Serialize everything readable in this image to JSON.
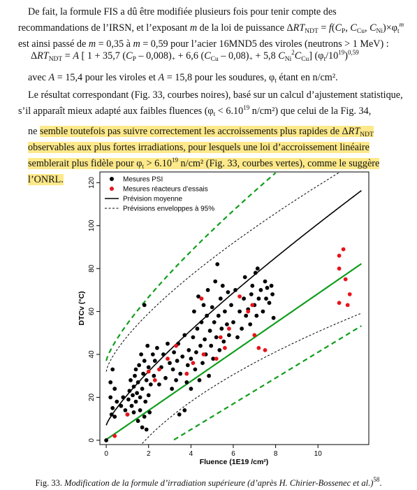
{
  "text": {
    "p1": "De fait, la formule FIS a dû être modifiée plusieurs fois pour tenir compte des recommandations de l’IRSN, et l’exposant m de la loi de puissance ΔRTNDT = f(CP, CCu, CNi)×φtm est ainsi passé de m = 0,35 à m = 0,59 pour l’acier 16MND5 des viroles (neutrons > 1 MeV) :",
    "eq": "ΔRTNDT = A [ 1 + 35,7 (CP – 0,008)+ + 6,6 (CCu – 0,08)+ + 5,8 CNi2CCu] (φt/1019)0,59",
    "p2": "avec A = 15,4 pour les viroles et A = 15,8 pour les soudures, φt étant en n/cm².",
    "p3": "Le résultat correspondant (Fig. 33, courbes noires), basé sur un calcul d’ajustement statistique, s’il apparaît mieux adapté aux faibles fluences (φt < 6.1019 n/cm²) que celui de la Fig. 34,",
    "p4_lead": "ne ",
    "p4_hl": "semble toutefois pas suivre correctement les accroissements plus rapides de ΔRTNDT observables aux plus fortes irradiations, pour lesquels une loi d’accroissement linéaire semblerait plus fidèle pour φt > 6.1019 n/cm² (Fig. 33, courbes vertes), comme le suggère l’ONRL.",
    "caption_label": "Fig. 33.",
    "caption_text": "Modification de la formule d’irradiation supérieure (d’après H. Chirier-Bossenec et al.)",
    "caption_ref": "58",
    "caption_end": "."
  },
  "chart_data": {
    "type": "scatter",
    "xlabel": "Fluence (1E19 /cm²)",
    "ylabel": "DTCv (°C)",
    "xlim": [
      -0.3,
      12.4
    ],
    "ylim": [
      -2,
      125
    ],
    "xticks": [
      0,
      2,
      4,
      6,
      8,
      10
    ],
    "yticks": [
      0,
      20,
      40,
      60,
      80,
      100,
      120
    ],
    "legend": {
      "position": "top-left",
      "entries": [
        "Mesures PSI",
        "Mesures réacteurs d’essais",
        "Prévision moyenne",
        "Prévisions enveloppes à 95%"
      ]
    },
    "series": [
      {
        "name": "Mesures PSI",
        "color": "#000000",
        "points": [
          [
            0.0,
            0
          ],
          [
            0.2,
            27
          ],
          [
            0.2,
            20
          ],
          [
            0.25,
            12
          ],
          [
            0.3,
            15
          ],
          [
            0.3,
            33
          ],
          [
            0.4,
            11
          ],
          [
            0.4,
            24
          ],
          [
            0.5,
            18
          ],
          [
            0.7,
            16
          ],
          [
            0.8,
            20
          ],
          [
            0.9,
            14
          ],
          [
            1.0,
            12
          ],
          [
            1.05,
            19
          ],
          [
            1.1,
            23
          ],
          [
            1.15,
            28
          ],
          [
            1.2,
            16
          ],
          [
            1.25,
            21
          ],
          [
            1.3,
            13
          ],
          [
            1.3,
            25
          ],
          [
            1.35,
            30
          ],
          [
            1.4,
            18
          ],
          [
            1.4,
            33
          ],
          [
            1.45,
            22
          ],
          [
            1.5,
            9
          ],
          [
            1.5,
            27
          ],
          [
            1.55,
            35
          ],
          [
            1.6,
            14
          ],
          [
            1.6,
            20
          ],
          [
            1.65,
            40
          ],
          [
            1.7,
            6
          ],
          [
            1.7,
            24
          ],
          [
            1.75,
            31
          ],
          [
            1.8,
            11
          ],
          [
            1.8,
            37
          ],
          [
            1.8,
            63
          ],
          [
            1.85,
            18
          ],
          [
            1.9,
            5
          ],
          [
            1.9,
            28
          ],
          [
            1.95,
            44
          ],
          [
            2.0,
            21
          ],
          [
            2.0,
            34
          ],
          [
            2.05,
            13
          ],
          [
            2.1,
            26
          ],
          [
            2.2,
            40
          ],
          [
            2.25,
            30
          ],
          [
            2.3,
            37
          ],
          [
            2.4,
            43
          ],
          [
            2.5,
            26
          ],
          [
            2.6,
            34
          ],
          [
            2.7,
            40
          ],
          [
            2.8,
            29
          ],
          [
            2.9,
            45
          ],
          [
            3.0,
            36
          ],
          [
            3.1,
            24
          ],
          [
            3.15,
            33
          ],
          [
            3.2,
            41
          ],
          [
            3.3,
            28
          ],
          [
            3.35,
            37
          ],
          [
            3.4,
            45
          ],
          [
            3.45,
            12
          ],
          [
            3.5,
            31
          ],
          [
            3.6,
            39
          ],
          [
            3.7,
            14
          ],
          [
            3.7,
            49
          ],
          [
            3.8,
            27
          ],
          [
            3.85,
            35
          ],
          [
            3.9,
            42
          ],
          [
            4.0,
            24
          ],
          [
            4.0,
            38
          ],
          [
            4.1,
            48
          ],
          [
            4.15,
            60
          ],
          [
            4.2,
            33
          ],
          [
            4.25,
            41
          ],
          [
            4.3,
            52
          ],
          [
            4.35,
            67
          ],
          [
            4.4,
            28
          ],
          [
            4.45,
            44
          ],
          [
            4.5,
            55
          ],
          [
            4.55,
            36
          ],
          [
            4.6,
            63
          ],
          [
            4.65,
            47
          ],
          [
            4.7,
            40
          ],
          [
            4.75,
            58
          ],
          [
            4.8,
            70
          ],
          [
            4.85,
            30
          ],
          [
            4.9,
            51
          ],
          [
            4.95,
            44
          ],
          [
            5.0,
            62
          ],
          [
            5.05,
            38
          ],
          [
            5.1,
            55
          ],
          [
            5.15,
            74
          ],
          [
            5.2,
            48
          ],
          [
            5.25,
            82
          ],
          [
            5.3,
            58
          ],
          [
            5.35,
            42
          ],
          [
            5.4,
            66
          ],
          [
            5.45,
            52
          ],
          [
            5.5,
            72
          ],
          [
            5.55,
            46
          ],
          [
            5.6,
            60
          ],
          [
            5.7,
            54
          ],
          [
            5.75,
            69
          ],
          [
            5.8,
            49
          ],
          [
            5.9,
            63
          ],
          [
            6.0,
            55
          ],
          [
            6.1,
            70
          ],
          [
            6.2,
            48
          ],
          [
            6.3,
            60
          ],
          [
            6.4,
            52
          ],
          [
            6.5,
            66
          ],
          [
            6.55,
            76
          ],
          [
            6.6,
            58
          ],
          [
            6.7,
            61
          ],
          [
            6.8,
            54
          ],
          [
            6.85,
            68
          ],
          [
            6.9,
            72
          ],
          [
            7.0,
            63
          ],
          [
            7.05,
            78
          ],
          [
            7.1,
            58
          ],
          [
            7.15,
            80
          ],
          [
            7.2,
            66
          ],
          [
            7.3,
            70
          ],
          [
            7.4,
            60
          ],
          [
            7.5,
            74
          ],
          [
            7.55,
            66
          ],
          [
            7.6,
            71
          ],
          [
            7.7,
            64
          ],
          [
            7.8,
            72
          ],
          [
            7.85,
            68
          ],
          [
            7.9,
            57
          ]
        ]
      },
      {
        "name": "Mesures réacteurs d’essais",
        "color": "#e8141b",
        "points": [
          [
            0.4,
            2
          ],
          [
            1.0,
            12
          ],
          [
            2.0,
            32
          ],
          [
            2.3,
            28
          ],
          [
            2.5,
            33
          ],
          [
            2.9,
            38
          ],
          [
            3.3,
            44
          ],
          [
            3.8,
            31
          ],
          [
            4.1,
            36
          ],
          [
            4.5,
            66
          ],
          [
            4.6,
            40
          ],
          [
            5.2,
            38
          ],
          [
            5.4,
            48
          ],
          [
            5.6,
            43
          ],
          [
            5.8,
            52
          ],
          [
            6.3,
            67
          ],
          [
            6.7,
            60
          ],
          [
            6.9,
            63
          ],
          [
            7.0,
            49
          ],
          [
            7.2,
            43
          ],
          [
            7.5,
            42
          ],
          [
            11.0,
            86
          ],
          [
            11.0,
            80
          ],
          [
            11.2,
            89
          ],
          [
            11.3,
            75
          ],
          [
            11.5,
            68
          ],
          [
            11.0,
            64
          ],
          [
            11.4,
            63
          ]
        ]
      }
    ],
    "curves": [
      {
        "name": "Prévision moyenne",
        "kind": "mean_power",
        "color": "#000000"
      },
      {
        "name": "Prévisions enveloppes à 95%",
        "kind": "envelope_upper",
        "color": "#000000"
      },
      {
        "name": "Prévisions enveloppes à 95%",
        "kind": "envelope_lower",
        "color": "#000000"
      },
      {
        "name": "",
        "kind": "mean_linear",
        "color": "#119e1d"
      },
      {
        "name": "",
        "kind": "green_upper",
        "color": "#119e1d"
      },
      {
        "name": "",
        "kind": "green_lower",
        "color": "#119e1d"
      }
    ]
  }
}
